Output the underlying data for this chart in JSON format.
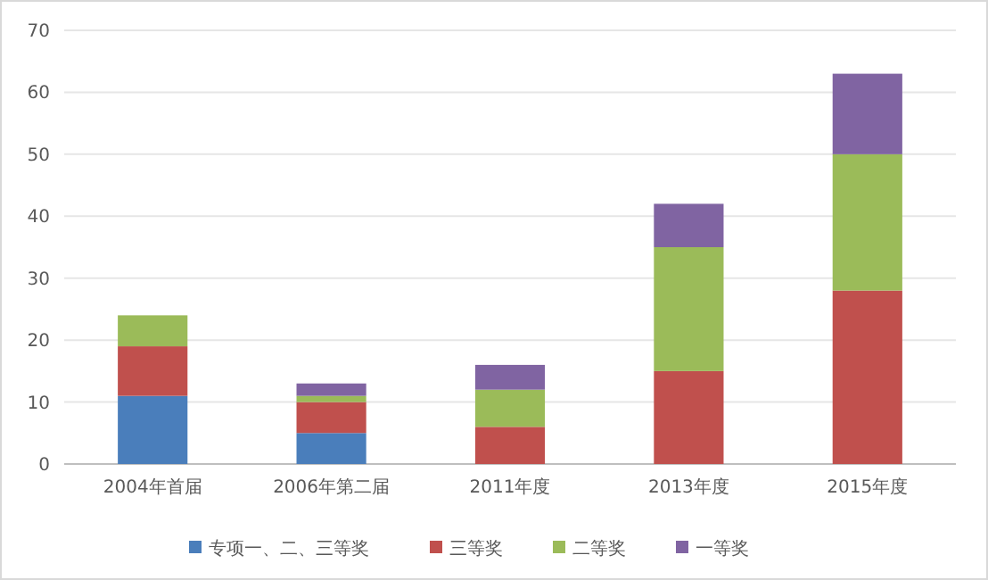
{
  "chart_data": {
    "type": "bar",
    "stacked": true,
    "categories": [
      "2004年首届",
      "2006年第二届",
      "2011年度",
      "2013年度",
      "2015年度"
    ],
    "series": [
      {
        "name": "专项一、二、三等奖",
        "color": "#4a7ebb",
        "values": [
          11,
          5,
          0,
          0,
          0
        ]
      },
      {
        "name": "三等奖",
        "color": "#c0504d",
        "values": [
          8,
          5,
          6,
          15,
          28
        ]
      },
      {
        "name": "二等奖",
        "color": "#9bbb59",
        "values": [
          5,
          1,
          6,
          20,
          22
        ]
      },
      {
        "name": "一等奖",
        "color": "#8064a2",
        "values": [
          0,
          2,
          4,
          7,
          13
        ]
      }
    ],
    "ylim": [
      0,
      70
    ],
    "yticks": [
      0,
      10,
      20,
      30,
      40,
      50,
      60,
      70
    ],
    "grid": "y",
    "legend": "bottom"
  }
}
